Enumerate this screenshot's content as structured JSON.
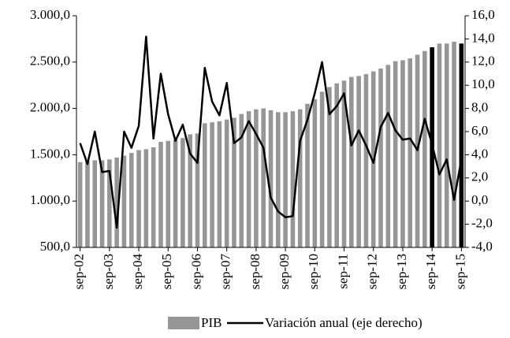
{
  "chart_data": {
    "type": "bar-line",
    "categories": [
      "sep-02",
      null,
      null,
      null,
      "sep-03",
      null,
      null,
      null,
      "sep-04",
      null,
      null,
      null,
      "sep-05",
      null,
      null,
      null,
      "sep-06",
      null,
      null,
      null,
      "sep-07",
      null,
      null,
      null,
      "sep-08",
      null,
      null,
      null,
      "sep-09",
      null,
      null,
      null,
      "sep-10",
      null,
      null,
      null,
      "sep-11",
      null,
      null,
      null,
      "sep-12",
      null,
      null,
      null,
      "sep-13",
      null,
      null,
      null,
      "sep-14",
      null,
      null,
      null,
      "sep-15"
    ],
    "series": [
      {
        "name": "PIB",
        "type": "bar",
        "color": "#969696",
        "colors": [
          "#969696",
          "#969696",
          "#969696",
          "#969696",
          "#969696",
          "#969696",
          "#969696",
          "#969696",
          "#969696",
          "#969696",
          "#969696",
          "#969696",
          "#969696",
          "#969696",
          "#969696",
          "#969696",
          "#969696",
          "#969696",
          "#969696",
          "#969696",
          "#969696",
          "#969696",
          "#969696",
          "#969696",
          "#969696",
          "#969696",
          "#969696",
          "#969696",
          "#969696",
          "#969696",
          "#969696",
          "#969696",
          "#969696",
          "#969696",
          "#969696",
          "#969696",
          "#969696",
          "#969696",
          "#969696",
          "#969696",
          "#969696",
          "#969696",
          "#969696",
          "#969696",
          "#969696",
          "#969696",
          "#969696",
          "#969696",
          "#000000",
          "#969696",
          "#969696",
          "#969696",
          "#000000"
        ],
        "values": [
          1420,
          1430,
          1440,
          1440,
          1450,
          1470,
          1490,
          1520,
          1550,
          1560,
          1580,
          1640,
          1650,
          1660,
          1680,
          1720,
          1730,
          1840,
          1850,
          1860,
          1880,
          1900,
          1940,
          1970,
          1990,
          2000,
          1980,
          1960,
          1960,
          1970,
          1990,
          2050,
          2100,
          2180,
          2230,
          2270,
          2300,
          2340,
          2350,
          2370,
          2400,
          2430,
          2470,
          2510,
          2520,
          2540,
          2580,
          2620,
          2660,
          2700,
          2700,
          2720,
          2700
        ]
      },
      {
        "name": "Variación anual (eje derecho)",
        "type": "line",
        "axis": "y2",
        "color": "#000000",
        "values": [
          5.0,
          3.2,
          6.0,
          2.5,
          2.6,
          -2.3,
          6.0,
          4.6,
          6.5,
          14.2,
          5.4,
          11.0,
          7.5,
          5.2,
          6.6,
          4.1,
          3.3,
          11.5,
          8.6,
          7.4,
          10.2,
          5.0,
          5.5,
          6.9,
          5.8,
          4.6,
          0.3,
          -0.9,
          -1.4,
          -1.3,
          5.2,
          7.0,
          9.3,
          12.0,
          7.5,
          8.2,
          9.3,
          4.8,
          6.1,
          4.8,
          3.3,
          6.4,
          7.6,
          6.1,
          5.3,
          5.4,
          4.4,
          7.1,
          4.9,
          2.3,
          3.6,
          0.1,
          3.6
        ]
      }
    ],
    "ylim": [
      500,
      3000
    ],
    "yticks": [
      {
        "value": 500,
        "label": "500,0"
      },
      {
        "value": 1000,
        "label": "1.000,0"
      },
      {
        "value": 1500,
        "label": "1.500,0"
      },
      {
        "value": 2000,
        "label": "2.000,0"
      },
      {
        "value": 2500,
        "label": "2.500,0"
      },
      {
        "value": 3000,
        "label": "3.000,0"
      }
    ],
    "y2lim": [
      -4,
      16
    ],
    "y2ticks": [
      {
        "value": -4,
        "label": "-4,0"
      },
      {
        "value": -2,
        "label": "-2,0"
      },
      {
        "value": 0,
        "label": "0,0"
      },
      {
        "value": 2,
        "label": "2,0"
      },
      {
        "value": 4,
        "label": "4,0"
      },
      {
        "value": 6,
        "label": "6,0"
      },
      {
        "value": 8,
        "label": "8,0"
      },
      {
        "value": 10,
        "label": "10,0"
      },
      {
        "value": 12,
        "label": "12,0"
      },
      {
        "value": 14,
        "label": "14,0"
      },
      {
        "value": 16,
        "label": "16,0"
      }
    ],
    "legend": "bottom"
  }
}
